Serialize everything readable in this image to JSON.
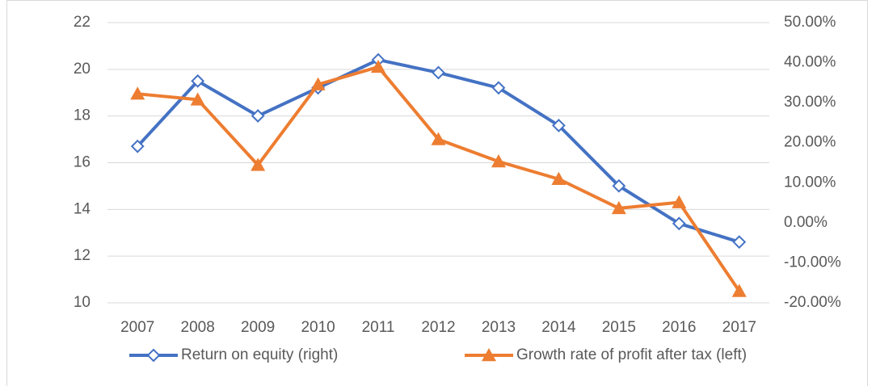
{
  "chart_data": {
    "type": "line",
    "categories": [
      "2007",
      "2008",
      "2009",
      "2010",
      "2011",
      "2012",
      "2013",
      "2014",
      "2015",
      "2016",
      "2017"
    ],
    "series": [
      {
        "name": "Return on equity (right)",
        "color": "#4472c4",
        "marker": "diamond",
        "axis": "y2",
        "values": [
          19.1,
          35.4,
          26.7,
          33.7,
          40.7,
          37.5,
          33.7,
          24.3,
          9.2,
          -0.2,
          -4.8
        ]
      },
      {
        "name": "Growth rate of profit after tax (left)",
        "color": "#ed7d31",
        "marker": "triangle",
        "values": [
          18.95,
          18.7,
          15.9,
          19.35,
          20.1,
          17.0,
          16.05,
          15.3,
          14.05,
          14.3,
          10.5
        ]
      }
    ],
    "ylim": [
      10,
      22
    ],
    "yticks": [
      10,
      12,
      14,
      16,
      18,
      20,
      22
    ],
    "y2lim": [
      -20,
      50
    ],
    "y2ticks": [
      {
        "value": -20,
        "label": "-20.00%"
      },
      {
        "value": -10,
        "label": "-10.00%"
      },
      {
        "value": 0,
        "label": "0.00%"
      },
      {
        "value": 10,
        "label": "10.00%"
      },
      {
        "value": 20,
        "label": "20.00%"
      },
      {
        "value": 30,
        "label": "30.00%"
      },
      {
        "value": 40,
        "label": "40.00%"
      },
      {
        "value": 50,
        "label": "50.00%"
      }
    ],
    "grid": true,
    "legend": "bottom"
  }
}
